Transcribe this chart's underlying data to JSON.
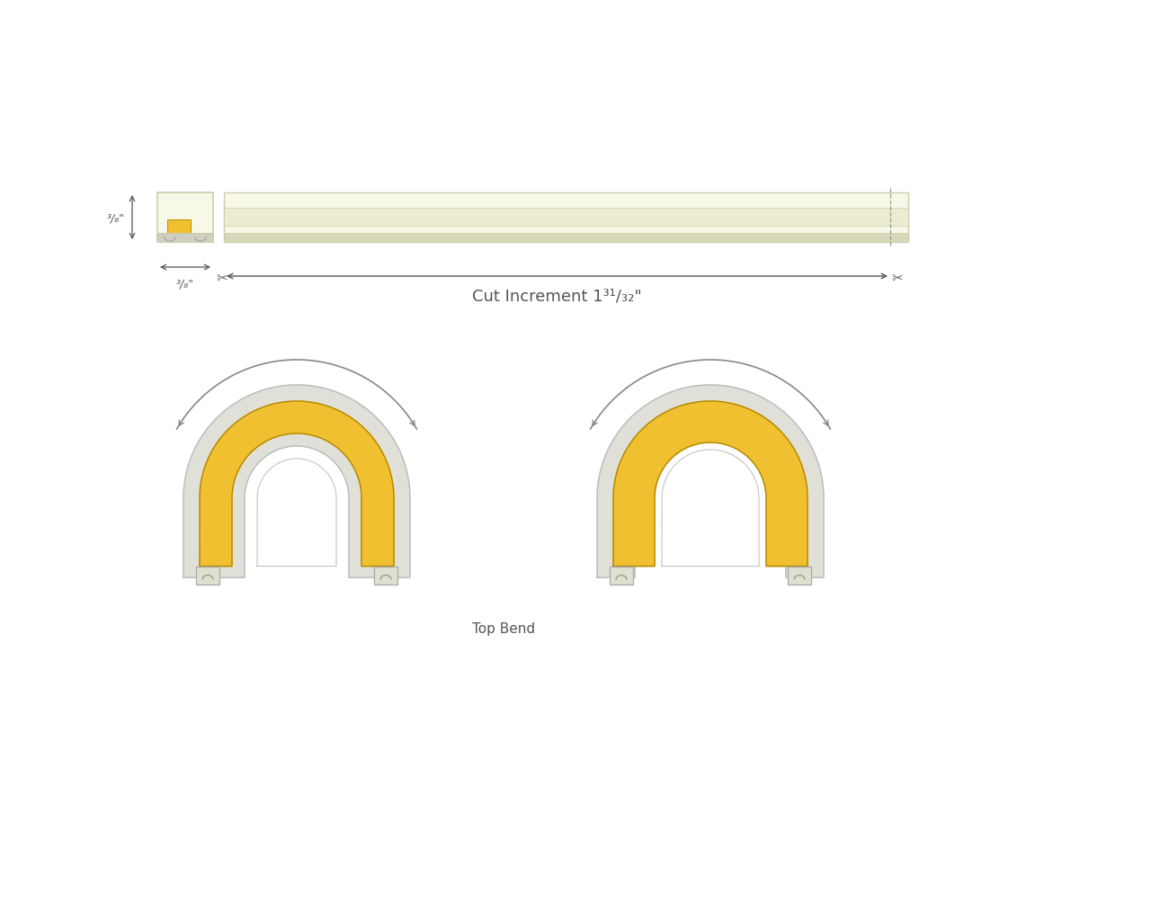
{
  "bg_color": "#ffffff",
  "strip_color": "#f8f8e8",
  "strip_border_color": "#ccccaa",
  "led_color": "#f0c030",
  "led_outline": "#ccccaa",
  "dimension_color": "#555555",
  "arrow_color": "#888888",
  "cut_line_color": "#999999",
  "label_color": "#555555",
  "top_label": "Cut Increment 1³¹/₃₂\"",
  "side_label_h": "³/₈\"",
  "side_label_w": "³/₈\"",
  "bottom_label": "Top Bend",
  "casing_color": "#e0e0d8",
  "inner_white": "#ffffff"
}
